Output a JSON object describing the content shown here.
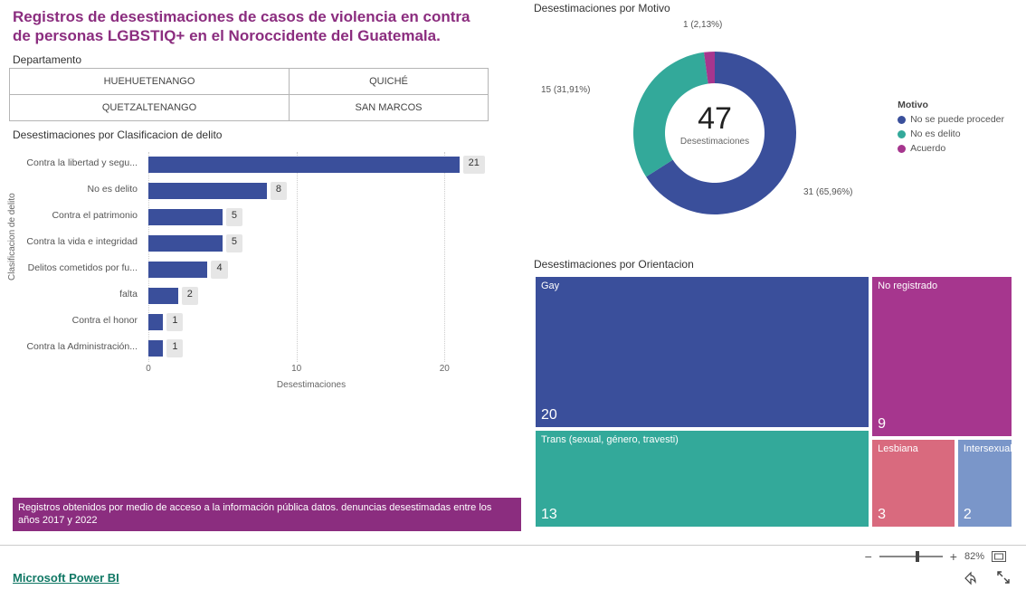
{
  "title": "Registros de desestimaciones de casos de violencia en contra de personas LGBSTIQ+ en el Noroccidente del Guatemala.",
  "department": {
    "label": "Departamento",
    "items": [
      "HUEHUETENANGO",
      "QUICHÉ",
      "QUETZALTENANGO",
      "SAN MARCOS"
    ]
  },
  "bar_chart": {
    "title": "Desestimaciones por Clasificacion de delito",
    "y_axis_label": "Clasificacion de delito",
    "x_axis_label": "Desestimaciones",
    "categories": [
      "Contra la libertad y segu...",
      "No es delito",
      "Contra el patrimonio",
      "Contra la vida e integridad",
      "Delitos cometidos por fu...",
      "falta",
      "Contra el honor",
      "Contra la Administración..."
    ],
    "values": [
      21,
      8,
      5,
      5,
      4,
      2,
      1,
      1
    ],
    "bar_color": "#3a4f9b",
    "value_bg": "#e6e6e6",
    "x_ticks": [
      0,
      10,
      20
    ],
    "x_max": 22,
    "grid_color": "#cccccc"
  },
  "footnote": "Registros obtenidos por medio de acceso a la información pública datos. denuncias desestimadas entre los años 2017 y 2022",
  "donut": {
    "title": "Desestimaciones por Motivo",
    "center_value": "47",
    "center_label": "Desestimaciones",
    "legend_title": "Motivo",
    "slices": [
      {
        "label": "No se puede proceder",
        "value": 31,
        "pct": "65,96%",
        "color": "#3a4f9b",
        "data_label": "31 (65,96%)"
      },
      {
        "label": "No es delito",
        "value": 15,
        "pct": "31,91%",
        "color": "#33a99a",
        "data_label": "15 (31,91%)"
      },
      {
        "label": "Acuerdo",
        "value": 1,
        "pct": "2,13%",
        "color": "#a6368e",
        "data_label": "1 (2,13%)"
      }
    ]
  },
  "treemap": {
    "title": "Desestimaciones por Orientacion",
    "total": 47,
    "items": [
      {
        "label": "Gay",
        "value": 20,
        "color": "#3a4f9b"
      },
      {
        "label": "Trans (sexual, género, travesti)",
        "value": 13,
        "color": "#33a99a"
      },
      {
        "label": "No registrado",
        "value": 9,
        "color": "#a6368e"
      },
      {
        "label": "Lesbiana",
        "value": 3,
        "color": "#d96a7e"
      },
      {
        "label": "Intersexual",
        "value": 2,
        "color": "#7a96c9"
      }
    ]
  },
  "toolbar": {
    "zoom_pct": "82%",
    "powerbi": "Microsoft Power BI"
  },
  "colors": {
    "accent": "#8b2d7f",
    "footnote_bg": "#8b2d7f",
    "link": "#117865"
  }
}
